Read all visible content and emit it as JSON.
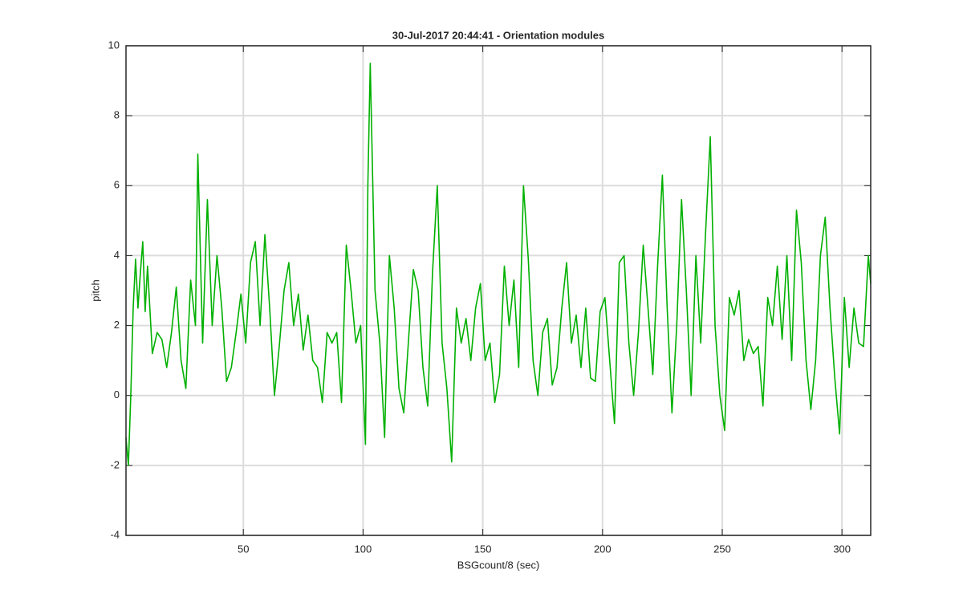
{
  "chart_data": {
    "type": "line",
    "title": "30-Jul-2017 20:44:41 - Orientation modules",
    "xlabel": "BSGcount/8 (sec)",
    "ylabel": "pitch",
    "x": [
      1,
      2,
      3,
      4,
      5,
      6,
      7,
      8,
      9,
      10,
      12,
      14,
      16,
      18,
      20,
      22,
      24,
      26,
      28,
      30,
      31,
      33,
      35,
      37,
      39,
      41,
      43,
      45,
      47,
      49,
      51,
      53,
      55,
      57,
      59,
      61,
      63,
      65,
      67,
      69,
      71,
      73,
      75,
      77,
      79,
      81,
      83,
      85,
      87,
      89,
      91,
      93,
      95,
      97,
      99,
      101,
      102,
      103,
      105,
      107,
      109,
      111,
      113,
      115,
      117,
      119,
      121,
      123,
      125,
      127,
      129,
      131,
      133,
      135,
      137,
      139,
      141,
      143,
      145,
      147,
      149,
      151,
      153,
      155,
      157,
      159,
      161,
      163,
      165,
      167,
      169,
      171,
      173,
      175,
      177,
      179,
      181,
      183,
      185,
      187,
      189,
      191,
      193,
      195,
      197,
      199,
      201,
      203,
      205,
      207,
      209,
      211,
      213,
      215,
      217,
      219,
      221,
      223,
      225,
      227,
      229,
      231,
      233,
      235,
      237,
      239,
      241,
      243,
      245,
      247,
      249,
      251,
      253,
      255,
      257,
      259,
      261,
      263,
      265,
      267,
      269,
      271,
      273,
      275,
      277,
      279,
      281,
      283,
      285,
      287,
      289,
      291,
      293,
      295,
      297,
      299,
      301,
      303,
      305,
      307,
      309,
      311,
      312
    ],
    "series": [
      {
        "name": "pitch",
        "color": "#00b000",
        "values": [
          -1.2,
          -2,
          0,
          2.5,
          3.9,
          2.5,
          3.5,
          4.4,
          2.4,
          3.7,
          1.2,
          1.8,
          1.6,
          0.8,
          1.8,
          3.1,
          1.0,
          0.2,
          3.3,
          2.0,
          6.9,
          1.5,
          5.6,
          2.0,
          4.0,
          2.5,
          0.4,
          0.8,
          1.8,
          2.9,
          1.5,
          3.8,
          4.4,
          2.0,
          4.6,
          2.5,
          0.0,
          1.4,
          3.0,
          3.8,
          2.0,
          2.9,
          1.3,
          2.3,
          1.0,
          0.8,
          -0.2,
          1.8,
          1.5,
          1.8,
          -0.2,
          4.3,
          3.0,
          1.5,
          2.0,
          -1.4,
          6,
          9.5,
          3.0,
          1.5,
          -1.2,
          4.0,
          2.5,
          0.2,
          -0.5,
          1.6,
          3.6,
          3.0,
          0.8,
          -0.3,
          3.5,
          6.0,
          1.5,
          0.2,
          -1.9,
          2.5,
          1.5,
          2.2,
          1.0,
          2.5,
          3.2,
          1.0,
          1.5,
          -0.2,
          0.6,
          3.7,
          2.0,
          3.3,
          0.8,
          6.0,
          3.9,
          1.0,
          0.0,
          1.8,
          2.2,
          0.3,
          0.8,
          2.5,
          3.8,
          1.5,
          2.3,
          0.8,
          2.5,
          0.5,
          0.4,
          2.4,
          2.8,
          1.0,
          -0.8,
          3.8,
          4.0,
          1.5,
          0.0,
          1.8,
          4.3,
          2.5,
          0.6,
          3.7,
          6.3,
          2.5,
          -0.5,
          2.0,
          5.6,
          3.0,
          0.0,
          4.0,
          1.5,
          4.6,
          7.4,
          2.0,
          0.0,
          -1.0,
          2.8,
          2.3,
          3.0,
          1.0,
          1.6,
          1.2,
          1.4,
          -0.3,
          2.8,
          2.0,
          3.7,
          1.6,
          4.0,
          1.0,
          5.3,
          3.8,
          1.0,
          -0.4,
          1.0,
          4.0,
          5.1,
          2.5,
          0.5,
          -1.1,
          2.8,
          0.8,
          2.5,
          1.5,
          1.4,
          4.0,
          3.2
        ]
      }
    ],
    "xlim": [
      1,
      312
    ],
    "ylim": [
      -4,
      10
    ],
    "xticks": [
      50,
      100,
      150,
      200,
      250,
      300
    ],
    "yticks": [
      -4,
      -2,
      0,
      2,
      4,
      6,
      8,
      10
    ],
    "grid": true
  }
}
